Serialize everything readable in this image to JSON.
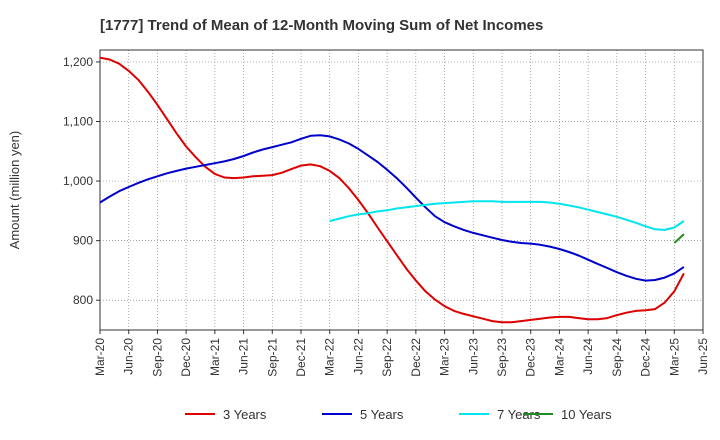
{
  "chart_data": {
    "type": "line",
    "title": "[1777]  Trend of Mean of 12-Month Moving Sum of Net Incomes",
    "ylabel": "Amount (million yen)",
    "xlabel": "",
    "ylim": [
      750,
      1220
    ],
    "yticks": [
      800,
      900,
      1000,
      1100,
      1200
    ],
    "ytick_labels": [
      "800",
      "900",
      "1,000",
      "1,100",
      "1,200"
    ],
    "xlim": [
      "2020-03",
      "2025-06"
    ],
    "xtick_labels": [
      "Mar-20",
      "Jun-20",
      "Sep-20",
      "Dec-20",
      "Mar-21",
      "Jun-21",
      "Sep-21",
      "Dec-21",
      "Mar-22",
      "Jun-22",
      "Sep-22",
      "Dec-22",
      "Mar-23",
      "Jun-23",
      "Sep-23",
      "Dec-23",
      "Mar-24",
      "Jun-24",
      "Sep-24",
      "Dec-24",
      "Mar-25",
      "Jun-25"
    ],
    "grid": true,
    "legend_position": "bottom",
    "series": [
      {
        "name": "3 Years",
        "color": "#dd0000",
        "points": [
          [
            "2020-03",
            1207
          ],
          [
            "2020-04",
            1204
          ],
          [
            "2020-05",
            1197
          ],
          [
            "2020-06",
            1185
          ],
          [
            "2020-07",
            1170
          ],
          [
            "2020-08",
            1150
          ],
          [
            "2020-09",
            1128
          ],
          [
            "2020-10",
            1104
          ],
          [
            "2020-11",
            1080
          ],
          [
            "2020-12",
            1058
          ],
          [
            "2021-01",
            1040
          ],
          [
            "2021-02",
            1024
          ],
          [
            "2021-03",
            1012
          ],
          [
            "2021-04",
            1006
          ],
          [
            "2021-05",
            1005
          ],
          [
            "2021-06",
            1006
          ],
          [
            "2021-07",
            1008
          ],
          [
            "2021-08",
            1009
          ],
          [
            "2021-09",
            1010
          ],
          [
            "2021-10",
            1014
          ],
          [
            "2021-11",
            1020
          ],
          [
            "2021-12",
            1026
          ],
          [
            "2022-01",
            1028
          ],
          [
            "2022-02",
            1025
          ],
          [
            "2022-03",
            1017
          ],
          [
            "2022-04",
            1005
          ],
          [
            "2022-05",
            988
          ],
          [
            "2022-06",
            968
          ],
          [
            "2022-07",
            946
          ],
          [
            "2022-08",
            922
          ],
          [
            "2022-09",
            899
          ],
          [
            "2022-10",
            876
          ],
          [
            "2022-11",
            853
          ],
          [
            "2022-12",
            833
          ],
          [
            "2023-01",
            815
          ],
          [
            "2023-02",
            801
          ],
          [
            "2023-03",
            790
          ],
          [
            "2023-04",
            782
          ],
          [
            "2023-05",
            777
          ],
          [
            "2023-06",
            773
          ],
          [
            "2023-07",
            769
          ],
          [
            "2023-08",
            765
          ],
          [
            "2023-09",
            763
          ],
          [
            "2023-10",
            763
          ],
          [
            "2023-11",
            765
          ],
          [
            "2023-12",
            767
          ],
          [
            "2024-01",
            769
          ],
          [
            "2024-02",
            771
          ],
          [
            "2024-03",
            772
          ],
          [
            "2024-04",
            772
          ],
          [
            "2024-05",
            770
          ],
          [
            "2024-06",
            768
          ],
          [
            "2024-07",
            768
          ],
          [
            "2024-08",
            770
          ],
          [
            "2024-09",
            775
          ],
          [
            "2024-10",
            779
          ],
          [
            "2024-11",
            782
          ],
          [
            "2024-12",
            783
          ],
          [
            "2025-01",
            785
          ],
          [
            "2025-02",
            796
          ],
          [
            "2025-03",
            815
          ],
          [
            "2025-04",
            845
          ]
        ]
      },
      {
        "name": "5 Years",
        "color": "#0000cc",
        "points": [
          [
            "2020-03",
            964
          ],
          [
            "2020-04",
            974
          ],
          [
            "2020-05",
            983
          ],
          [
            "2020-06",
            990
          ],
          [
            "2020-07",
            997
          ],
          [
            "2020-08",
            1003
          ],
          [
            "2020-09",
            1008
          ],
          [
            "2020-10",
            1013
          ],
          [
            "2020-11",
            1017
          ],
          [
            "2020-12",
            1021
          ],
          [
            "2021-01",
            1024
          ],
          [
            "2021-02",
            1027
          ],
          [
            "2021-03",
            1030
          ],
          [
            "2021-04",
            1033
          ],
          [
            "2021-05",
            1037
          ],
          [
            "2021-06",
            1042
          ],
          [
            "2021-07",
            1048
          ],
          [
            "2021-08",
            1053
          ],
          [
            "2021-09",
            1057
          ],
          [
            "2021-10",
            1061
          ],
          [
            "2021-11",
            1065
          ],
          [
            "2021-12",
            1071
          ],
          [
            "2022-01",
            1076
          ],
          [
            "2022-02",
            1077
          ],
          [
            "2022-03",
            1075
          ],
          [
            "2022-04",
            1070
          ],
          [
            "2022-05",
            1063
          ],
          [
            "2022-06",
            1054
          ],
          [
            "2022-07",
            1043
          ],
          [
            "2022-08",
            1032
          ],
          [
            "2022-09",
            1019
          ],
          [
            "2022-10",
            1005
          ],
          [
            "2022-11",
            989
          ],
          [
            "2022-12",
            972
          ],
          [
            "2023-01",
            956
          ],
          [
            "2023-02",
            941
          ],
          [
            "2023-03",
            931
          ],
          [
            "2023-04",
            924
          ],
          [
            "2023-05",
            918
          ],
          [
            "2023-06",
            913
          ],
          [
            "2023-07",
            909
          ],
          [
            "2023-08",
            905
          ],
          [
            "2023-09",
            901
          ],
          [
            "2023-10",
            898
          ],
          [
            "2023-11",
            896
          ],
          [
            "2023-12",
            895
          ],
          [
            "2024-01",
            893
          ],
          [
            "2024-02",
            890
          ],
          [
            "2024-03",
            886
          ],
          [
            "2024-04",
            881
          ],
          [
            "2024-05",
            875
          ],
          [
            "2024-06",
            868
          ],
          [
            "2024-07",
            861
          ],
          [
            "2024-08",
            854
          ],
          [
            "2024-09",
            847
          ],
          [
            "2024-10",
            841
          ],
          [
            "2024-11",
            836
          ],
          [
            "2024-12",
            833
          ],
          [
            "2025-01",
            834
          ],
          [
            "2025-02",
            838
          ],
          [
            "2025-03",
            845
          ],
          [
            "2025-04",
            856
          ]
        ]
      },
      {
        "name": "7 Years",
        "color": "#00e5ee",
        "points": [
          [
            "2022-03",
            933
          ],
          [
            "2022-04",
            937
          ],
          [
            "2022-05",
            941
          ],
          [
            "2022-06",
            944
          ],
          [
            "2022-07",
            946
          ],
          [
            "2022-08",
            949
          ],
          [
            "2022-09",
            951
          ],
          [
            "2022-10",
            954
          ],
          [
            "2022-11",
            956
          ],
          [
            "2022-12",
            958
          ],
          [
            "2023-01",
            960
          ],
          [
            "2023-02",
            962
          ],
          [
            "2023-03",
            963
          ],
          [
            "2023-04",
            964
          ],
          [
            "2023-05",
            965
          ],
          [
            "2023-06",
            966
          ],
          [
            "2023-07",
            966
          ],
          [
            "2023-08",
            966
          ],
          [
            "2023-09",
            965
          ],
          [
            "2023-10",
            965
          ],
          [
            "2023-11",
            965
          ],
          [
            "2023-12",
            965
          ],
          [
            "2024-01",
            965
          ],
          [
            "2024-02",
            964
          ],
          [
            "2024-03",
            962
          ],
          [
            "2024-04",
            959
          ],
          [
            "2024-05",
            956
          ],
          [
            "2024-06",
            952
          ],
          [
            "2024-07",
            948
          ],
          [
            "2024-08",
            944
          ],
          [
            "2024-09",
            940
          ],
          [
            "2024-10",
            935
          ],
          [
            "2024-11",
            930
          ],
          [
            "2024-12",
            924
          ],
          [
            "2025-01",
            919
          ],
          [
            "2025-02",
            918
          ],
          [
            "2025-03",
            922
          ],
          [
            "2025-04",
            933
          ]
        ]
      },
      {
        "name": "10 Years",
        "color": "#228b22",
        "points": [
          [
            "2025-03",
            896
          ],
          [
            "2025-04",
            911
          ]
        ]
      }
    ]
  }
}
